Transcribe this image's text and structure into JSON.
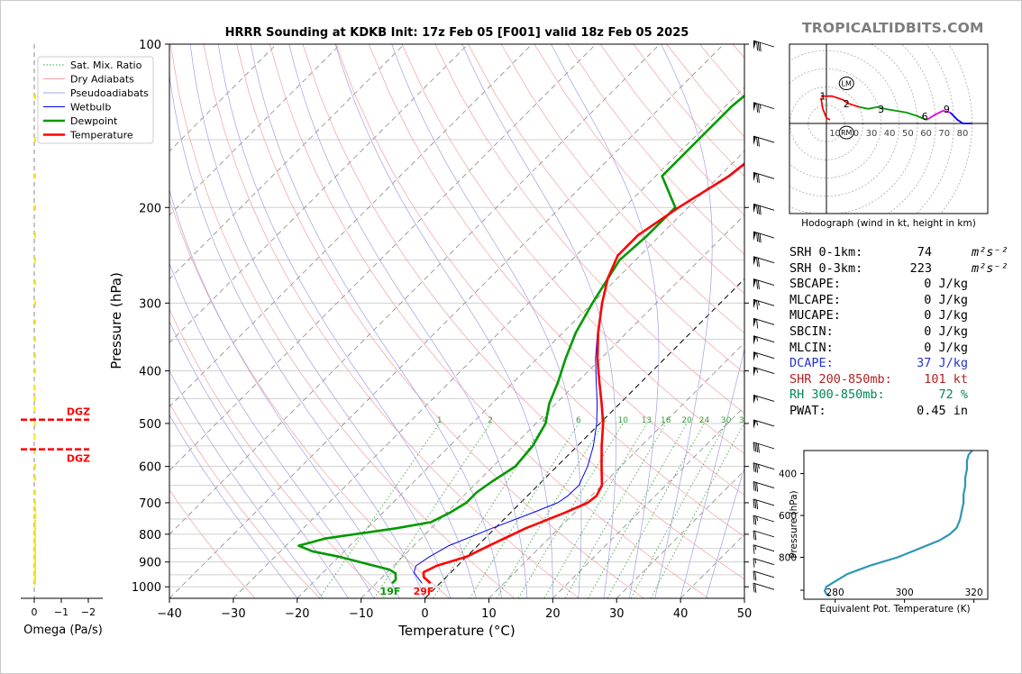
{
  "chart_data": [
    {
      "type": "line",
      "name": "skew-t",
      "title": "HRRR Sounding at KDKB Init: 17z Feb 05 [F001] valid 18z Feb 05 2025",
      "xlabel": "Temperature (°C)",
      "ylabel": "Pressure (hPa)",
      "xlim": [
        -40,
        50
      ],
      "ylim": [
        1050,
        100
      ],
      "yscale": "log",
      "x_ticks": [
        -40,
        -30,
        -20,
        -10,
        0,
        10,
        20,
        30,
        40,
        50
      ],
      "y_ticks": [
        100,
        200,
        300,
        400,
        500,
        600,
        700,
        800,
        900,
        1000
      ],
      "mixing_ratio_labels": [
        1,
        2,
        4,
        6,
        8,
        10,
        13,
        16,
        20,
        24,
        30,
        36
      ],
      "legend": [
        "Sat. Mix. Ratio",
        "Dry Adiabats",
        "Pseudoadiabats",
        "Wetbulb",
        "Dewpoint",
        "Temperature"
      ],
      "legend_position": "upper-left",
      "colors": {
        "temperature": "#ff0000",
        "dewpoint": "#009900",
        "wetbulb": "#0000ee",
        "dry": "#f09090",
        "moist": "#9090e0",
        "mixing": "#229922",
        "isotherm": "#000000"
      },
      "series": [
        {
          "name": "Temperature",
          "pressure": [
            985,
            960,
            940,
            915,
            880,
            840,
            780,
            730,
            700,
            680,
            650,
            600,
            550,
            500,
            460,
            420,
            380,
            340,
            300,
            270,
            245,
            225,
            200,
            175,
            150,
            130,
            100
          ],
          "values": [
            -1.5,
            -3.5,
            -4.3,
            -3.3,
            0,
            1.8,
            4.8,
            8.5,
            10.5,
            10.8,
            10,
            7,
            3.8,
            0.5,
            -2.8,
            -6.5,
            -10.5,
            -14.5,
            -18.5,
            -21.5,
            -23.5,
            -23.5,
            -21.5,
            -18.5,
            -17,
            -16.5,
            -15
          ]
        },
        {
          "name": "Dewpoint",
          "pressure": [
            985,
            970,
            945,
            930,
            880,
            860,
            840,
            815,
            780,
            760,
            730,
            700,
            670,
            640,
            600,
            550,
            500,
            460,
            420,
            380,
            340,
            300,
            250,
            225,
            200,
            175,
            150,
            130,
            100
          ],
          "values": [
            -7.5,
            -7.5,
            -8.5,
            -10,
            -20,
            -25,
            -28,
            -25,
            -15.5,
            -11,
            -9.5,
            -8.5,
            -8.5,
            -7.8,
            -6.5,
            -7,
            -8.5,
            -11,
            -13,
            -15.5,
            -18,
            -20,
            -22.5,
            -22,
            -22,
            -29,
            -29,
            -29,
            -27
          ]
        },
        {
          "name": "Wetbulb",
          "pressure": [
            985,
            960,
            940,
            915,
            880,
            840,
            780,
            730,
            700,
            680,
            650,
            600,
            550,
            500,
            460,
            420,
            380,
            340,
            300,
            270,
            245,
            225,
            200,
            175,
            150,
            130,
            100
          ],
          "values": [
            -2.8,
            -4.5,
            -5.8,
            -6.5,
            -5.8,
            -4.5,
            -0.5,
            3.5,
            5.8,
            6.3,
            6.4,
            4.8,
            2.5,
            -0.5,
            -3.5,
            -7,
            -10.8,
            -14.6,
            -18.5,
            -21.5,
            -23.5,
            -23.5,
            -21.6,
            -18.7,
            -17.2,
            -16.6,
            -15.1
          ]
        }
      ],
      "annotations": {
        "surface_dewpoint_f": "19F",
        "surface_temp_f": "29F"
      },
      "wind_barbs": [
        {
          "p": 100,
          "kt": 80
        },
        {
          "p": 130,
          "kt": 75
        },
        {
          "p": 150,
          "kt": 70
        },
        {
          "p": 175,
          "kt": 70
        },
        {
          "p": 200,
          "kt": 80
        },
        {
          "p": 225,
          "kt": 80
        },
        {
          "p": 250,
          "kt": 70
        },
        {
          "p": 275,
          "kt": 70
        },
        {
          "p": 300,
          "kt": 65
        },
        {
          "p": 325,
          "kt": 60
        },
        {
          "p": 350,
          "kt": 55
        },
        {
          "p": 375,
          "kt": 55
        },
        {
          "p": 400,
          "kt": 55
        },
        {
          "p": 450,
          "kt": 55
        },
        {
          "p": 500,
          "kt": 55
        },
        {
          "p": 550,
          "kt": 40
        },
        {
          "p": 600,
          "kt": 35
        },
        {
          "p": 650,
          "kt": 30
        },
        {
          "p": 700,
          "kt": 30
        },
        {
          "p": 750,
          "kt": 25
        },
        {
          "p": 800,
          "kt": 20
        },
        {
          "p": 850,
          "kt": 15
        },
        {
          "p": 900,
          "kt": 15
        },
        {
          "p": 950,
          "kt": 20
        },
        {
          "p": 1000,
          "kt": 20
        }
      ]
    },
    {
      "type": "bar",
      "name": "omega",
      "xlabel": "Omega (Pa/s)",
      "x_ticks": [
        "0",
        "−1",
        "−2"
      ],
      "xlim": [
        0.2,
        -2.6
      ],
      "bar_color": "#ffe800",
      "pressure": [
        125,
        150,
        175,
        200,
        225,
        250,
        275,
        300,
        325,
        350,
        375,
        400,
        430,
        450,
        470,
        500,
        530,
        560,
        600,
        630,
        670,
        700,
        720,
        740,
        760,
        780,
        800,
        820,
        840,
        860,
        880,
        900,
        920,
        940,
        960,
        980
      ],
      "values": [
        -0.05,
        -0.05,
        -0.04,
        -0.03,
        -0.02,
        -0.01,
        -0.01,
        -0.04,
        -0.03,
        -0.02,
        -0.02,
        -0.01,
        0.01,
        0.01,
        0.02,
        0.01,
        0.02,
        0.01,
        0,
        -0.02,
        -0.03,
        -0.05,
        -0.07,
        -0.08,
        -0.07,
        -0.05,
        -0.05,
        -0.04,
        -0.03,
        -0.02,
        -0.02,
        -0.03,
        -0.04,
        -0.03,
        -0.02,
        -0.01
      ],
      "dgz_label": "DGZ",
      "dgz_color": "#ff0000",
      "dgz_pressure": [
        492,
        558
      ]
    },
    {
      "type": "line",
      "name": "hodograph",
      "xlabel": "Hodograph (wind in kt, height in km)",
      "ring_labels": [
        10,
        20,
        30,
        40,
        50,
        60,
        70,
        80
      ],
      "markers": {
        "LM": [
          11,
          22
        ],
        "RM": [
          11,
          -5
        ]
      },
      "segments": [
        {
          "color": "#ff0000",
          "points": [
            [
              -3,
              14
            ],
            [
              -2,
              8
            ],
            [
              0,
              3
            ],
            [
              2,
              2
            ]
          ]
        },
        {
          "color": "#ff0000",
          "points": [
            [
              -3,
              15
            ],
            [
              3,
              15
            ],
            [
              9,
              13
            ],
            [
              12,
              11
            ],
            [
              15,
              10
            ],
            [
              18,
              9
            ]
          ]
        },
        {
          "color": "#009900",
          "points": [
            [
              18,
              9
            ],
            [
              23,
              8
            ],
            [
              28,
              9
            ],
            [
              32,
              8
            ],
            [
              38,
              7
            ],
            [
              44,
              6
            ],
            [
              50,
              4
            ],
            [
              55,
              2
            ]
          ]
        },
        {
          "color": "#dd00dd",
          "points": [
            [
              55,
              2
            ],
            [
              60,
              5
            ],
            [
              64,
              7
            ],
            [
              68,
              6
            ]
          ]
        },
        {
          "color": "#0000ee",
          "points": [
            [
              68,
              6
            ],
            [
              72,
              2
            ],
            [
              75,
              0
            ],
            [
              80,
              0
            ]
          ]
        }
      ],
      "height_labels": [
        {
          "text": "1",
          "u": -2,
          "v": 15
        },
        {
          "text": "2",
          "u": 11,
          "v": 11
        },
        {
          "text": "3",
          "u": 30,
          "v": 8
        },
        {
          "text": "6",
          "u": 54,
          "v": 4
        },
        {
          "text": "9",
          "u": 66,
          "v": 8
        }
      ]
    },
    {
      "type": "line",
      "name": "theta-e",
      "xlabel": "Equivalent Pot. Temperature (K)",
      "ylabel": "Pressure (hPa)",
      "x_ticks": [
        280,
        300,
        320
      ],
      "y_ticks": [
        400,
        600,
        800
      ],
      "xlim": [
        271,
        324
      ],
      "ylim": [
        1000,
        290
      ],
      "line_color": "#2f96b4",
      "pressure": [
        985,
        975,
        960,
        940,
        920,
        880,
        840,
        800,
        760,
        720,
        690,
        660,
        620,
        580,
        540,
        500,
        460,
        420,
        380,
        340,
        310,
        290
      ],
      "values": [
        278.5,
        277.5,
        277.0,
        277.5,
        279.5,
        283.5,
        290,
        298,
        304,
        310,
        313,
        315,
        316,
        316.5,
        317,
        317,
        317.5,
        317.5,
        318,
        318,
        318.5,
        319.5
      ]
    }
  ],
  "stats": [
    {
      "label": "SRH 0-1km:",
      "value": "74",
      "unit": "m²s⁻²",
      "color": "#000000"
    },
    {
      "label": "SRH 0-3km:",
      "value": "223",
      "unit": "m²s⁻²",
      "color": "#000000"
    },
    {
      "label": "SBCAPE:",
      "value": "0 J/kg",
      "unit": "",
      "color": "#000000"
    },
    {
      "label": "MLCAPE:",
      "value": "0 J/kg",
      "unit": "",
      "color": "#000000"
    },
    {
      "label": "MUCAPE:",
      "value": "0 J/kg",
      "unit": "",
      "color": "#000000"
    },
    {
      "label": "SBCIN:",
      "value": "0 J/kg",
      "unit": "",
      "color": "#000000"
    },
    {
      "label": "MLCIN:",
      "value": "0 J/kg",
      "unit": "",
      "color": "#000000"
    },
    {
      "label": "DCAPE:",
      "value": "37 J/kg",
      "unit": "",
      "color": "#2233cc"
    },
    {
      "label": "SHR 200-850mb:",
      "value": "101 kt",
      "unit": "",
      "color": "#b22222"
    },
    {
      "label": "RH 300-850mb:",
      "value": "72 %",
      "unit": "",
      "color": "#008855"
    },
    {
      "label": "PWAT:",
      "value": "0.45 in",
      "unit": "",
      "color": "#000000"
    }
  ],
  "brand": "TROPICALTIDBITS.COM"
}
